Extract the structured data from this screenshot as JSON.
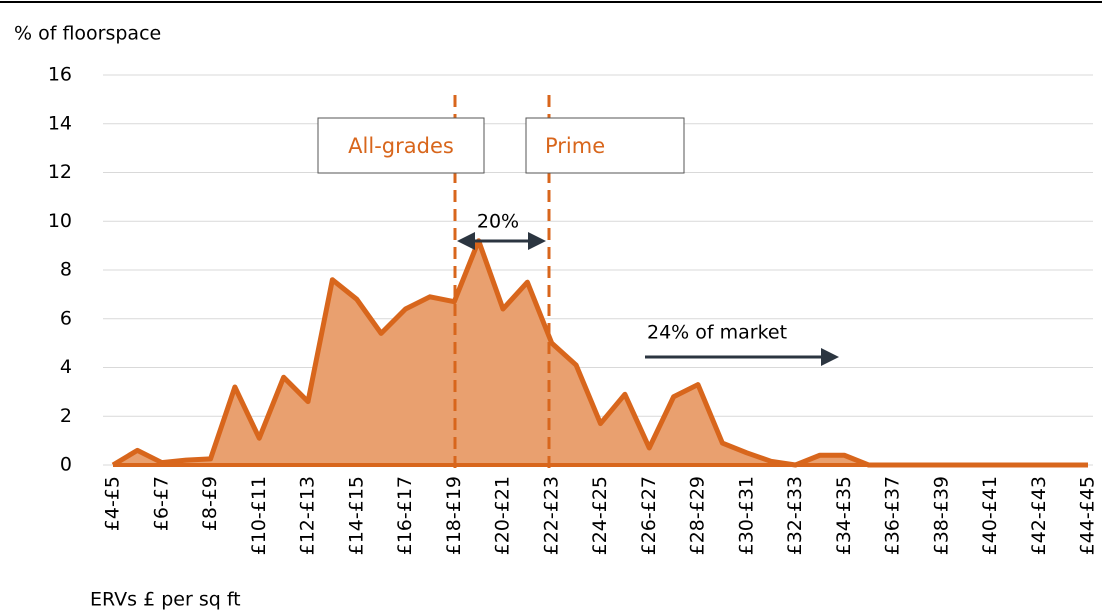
{
  "chart_data": {
    "type": "area",
    "y_axis_title": "% of floorspace",
    "x_axis_title": "ERVs £ per sq ft",
    "categories": [
      "£4-£5",
      null,
      "£6-£7",
      null,
      "£8-£9",
      null,
      "£10-£11",
      null,
      "£12-£13",
      null,
      "£14-£15",
      null,
      "£16-£17",
      null,
      "£18-£19",
      null,
      "£20-£21",
      null,
      "£22-£23",
      null,
      "£24-£25",
      null,
      "£26-£27",
      null,
      "£28-£29",
      null,
      "£30-£31",
      null,
      "£32-£33",
      null,
      "£34-£35",
      null,
      "£36-£37",
      null,
      "£38-£39",
      null,
      "£40-£41",
      null,
      "£42-£43",
      null,
      "£44-£45"
    ],
    "values": [
      0,
      0.6,
      0.1,
      0.2,
      0.25,
      3.2,
      1.1,
      3.6,
      2.6,
      7.6,
      6.8,
      5.4,
      6.4,
      6.9,
      6.7,
      9.2,
      6.4,
      7.5,
      5.0,
      4.1,
      1.7,
      2.9,
      0.7,
      2.8,
      3.3,
      0.9,
      0.5,
      0.15,
      0,
      0.4,
      0.4,
      0,
      0,
      0,
      0,
      0,
      0,
      0,
      0,
      0,
      0
    ],
    "color": "#d8661c",
    "fill": "#e9a06f",
    "ylim": [
      0,
      16
    ],
    "yticks": [
      0,
      2,
      4,
      6,
      8,
      10,
      12,
      14,
      16
    ],
    "grid": true,
    "annotations": {
      "all_grades": "All-grades",
      "prime": "Prime",
      "gap": "20%",
      "market": "24% of market"
    }
  }
}
